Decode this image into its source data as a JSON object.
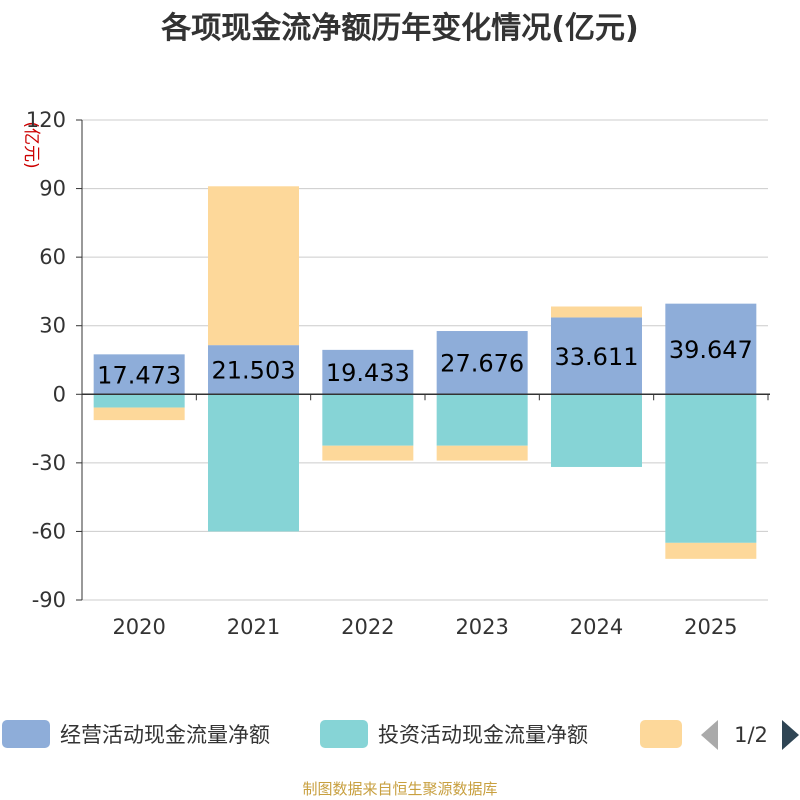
{
  "chart_data": {
    "type": "bar",
    "stacked": true,
    "title": "各项现金流净额历年变化情况(亿元)",
    "unit_label": "(亿元)",
    "categories": [
      "2020",
      "2021",
      "2022",
      "2023",
      "2024",
      "2025"
    ],
    "ylim": [
      -90,
      120
    ],
    "yticks": [
      120,
      90,
      60,
      30,
      0,
      -30,
      -60,
      -90
    ],
    "grid": true,
    "series": [
      {
        "name": "经营活动现金流量净额",
        "color": "#8eadd9",
        "values": [
          17.473,
          21.503,
          19.433,
          27.676,
          33.611,
          39.647
        ]
      },
      {
        "name": "投资活动现金流量净额",
        "color": "#86d4d6",
        "values": [
          -5.8,
          -60.0,
          -22.5,
          -22.5,
          -31.8,
          -65.0
        ]
      },
      {
        "name": "",
        "color": "#fdd89a",
        "values": [
          -5.5,
          69.5,
          -6.5,
          -6.5,
          4.8,
          -7.0
        ]
      }
    ],
    "data_labels": [
      "17.473",
      "21.503",
      "19.433",
      "27.676",
      "33.611",
      "39.647"
    ],
    "legend": {
      "position": "bottom",
      "page_indicator": "1/2"
    },
    "source": "制图数据来自恒生聚源数据库"
  }
}
